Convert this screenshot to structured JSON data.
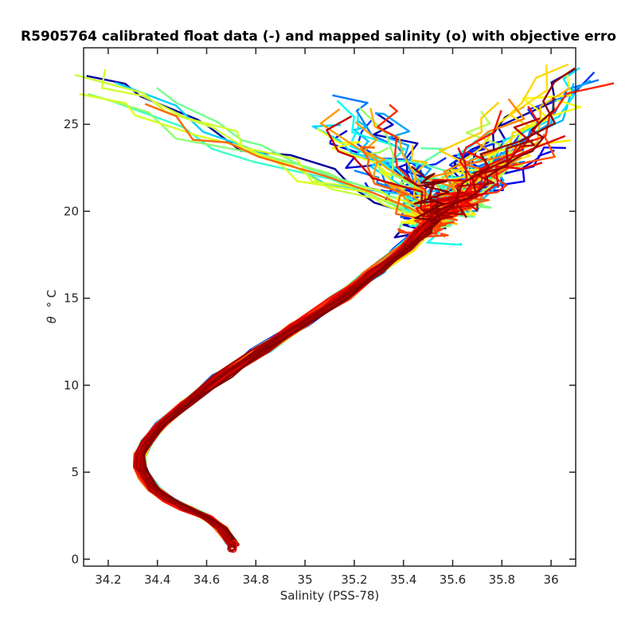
{
  "chart_data": {
    "type": "line",
    "title": "R5905764 calibrated float data (-) and mapped salinity (o) with objective erro",
    "xlabel": "Salinity (PSS-78)",
    "ylabel_symbol": "θ",
    "ylabel_unit": "° C",
    "xlim": [
      34.1,
      36.1
    ],
    "ylim": [
      -0.4,
      29.4
    ],
    "xticks": [
      34.2,
      34.4,
      34.6,
      34.8,
      35,
      35.2,
      35.4,
      35.6,
      35.8,
      36
    ],
    "xtick_labels": [
      "34.2",
      "34.4",
      "34.6",
      "34.8",
      "35",
      "35.2",
      "35.4",
      "35.6",
      "35.8",
      "36"
    ],
    "yticks": [
      0,
      5,
      10,
      15,
      20,
      25
    ],
    "ytick_labels": [
      "0",
      "5",
      "10",
      "15",
      "20",
      "25"
    ],
    "grid": false,
    "legend": "none",
    "colormap": "jet",
    "profile_count": 120,
    "common_deep_profile": {
      "salinity": [
        34.71,
        34.7,
        34.66,
        34.6,
        34.52,
        34.45,
        34.39,
        34.35,
        34.33,
        34.33,
        34.36,
        34.42,
        34.52,
        34.66,
        34.82,
        34.98,
        35.14,
        35.28,
        35.4,
        35.48,
        35.52
      ],
      "theta": [
        0.8,
        1.0,
        1.8,
        2.4,
        2.9,
        3.4,
        4.0,
        4.7,
        5.3,
        6.0,
        6.8,
        7.8,
        9.0,
        10.5,
        12.0,
        13.5,
        15.0,
        16.5,
        17.8,
        18.8,
        19.5
      ]
    },
    "surface_points": {
      "salinity": [
        35.52,
        35.62,
        35.7,
        35.85,
        35.2,
        34.2,
        36.05,
        35.9,
        35.4
      ],
      "theta": [
        19.5,
        21.0,
        22.5,
        24.0,
        26.0,
        27.0,
        27.5,
        25.0,
        23.0
      ]
    }
  }
}
